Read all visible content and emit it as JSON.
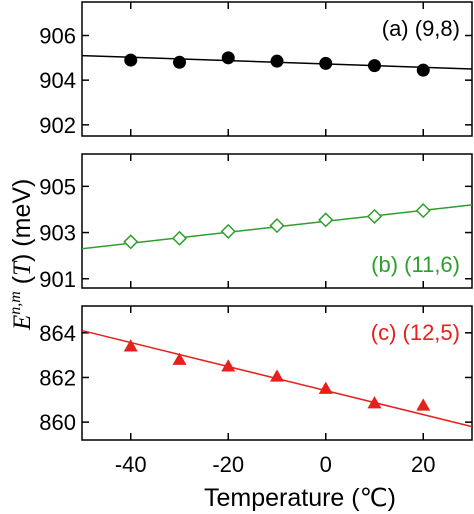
{
  "chart_data": [
    {
      "type": "scatter",
      "label": "(a) (9,8)",
      "color": "#000000",
      "marker": "filled-circle",
      "xlim": [
        -50,
        30
      ],
      "ylim": [
        901.5,
        907.5
      ],
      "yticks": [
        902,
        904,
        906
      ],
      "x": [
        -40,
        -30,
        -20,
        -10,
        0,
        10,
        20
      ],
      "y": [
        904.9,
        904.8,
        905.0,
        904.85,
        904.75,
        904.65,
        904.45
      ],
      "fit_line": {
        "x": [
          -50,
          30
        ],
        "y": [
          905.1,
          904.5
        ]
      }
    },
    {
      "type": "scatter",
      "label": "(b) (11,6)",
      "color": "#2e9e2e",
      "marker": "open-diamond",
      "xlim": [
        -50,
        30
      ],
      "ylim": [
        900.6,
        906.4
      ],
      "yticks": [
        901,
        903,
        905
      ],
      "x": [
        -40,
        -30,
        -20,
        -10,
        0,
        10,
        20
      ],
      "y": [
        902.6,
        902.75,
        903.05,
        903.3,
        903.55,
        903.7,
        903.95
      ],
      "fit_line": {
        "x": [
          -50,
          30
        ],
        "y": [
          902.3,
          904.2
        ]
      }
    },
    {
      "type": "scatter",
      "label": "(c) (12,5)",
      "color": "#e8201c",
      "marker": "filled-triangle",
      "xlim": [
        -50,
        30
      ],
      "ylim": [
        859.2,
        865.2
      ],
      "yticks": [
        860,
        862,
        864
      ],
      "x": [
        -40,
        -30,
        -20,
        -10,
        0,
        10,
        20
      ],
      "y": [
        863.4,
        862.8,
        862.5,
        862.05,
        861.5,
        860.85,
        860.75
      ],
      "fit_line": {
        "x": [
          -50,
          30
        ],
        "y": [
          864.1,
          859.8
        ]
      }
    }
  ],
  "xticks": [
    -40,
    -20,
    0,
    20
  ],
  "xlabel": "Temperature (℃)",
  "ylabel": {
    "base": "E",
    "superscript": "n,m",
    "argument": "T",
    "unit": "(meV)"
  }
}
